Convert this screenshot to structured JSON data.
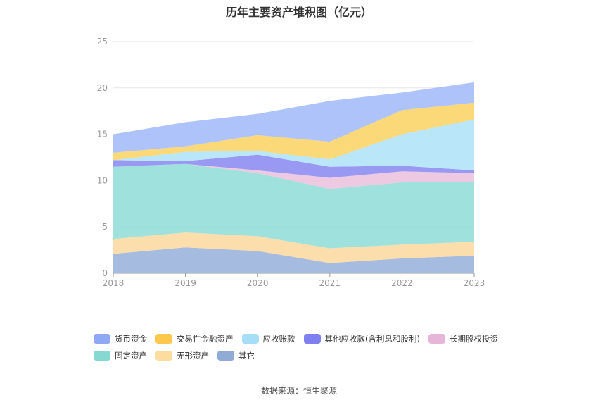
{
  "chart_data": {
    "type": "area",
    "stacked": true,
    "title": "历年主要资产堆积图（亿元）",
    "x": [
      "2018",
      "2019",
      "2020",
      "2021",
      "2022",
      "2023"
    ],
    "ylim": [
      0,
      25
    ],
    "yticks": [
      0,
      5,
      10,
      15,
      20,
      25
    ],
    "grid": true,
    "legend_position": "bottom",
    "series": [
      {
        "name": "其它",
        "color": "#9bb4dc",
        "values": [
          2.1,
          2.8,
          2.4,
          1.1,
          1.6,
          1.9
        ]
      },
      {
        "name": "无形资产",
        "color": "#fcd9a3",
        "values": [
          1.6,
          1.6,
          1.6,
          1.6,
          1.5,
          1.5
        ]
      },
      {
        "name": "固定资产",
        "color": "#94ded9",
        "values": [
          7.8,
          7.4,
          6.8,
          6.4,
          6.7,
          6.4
        ]
      },
      {
        "name": "长期股权投资",
        "color": "#ecc3df",
        "values": [
          0.0,
          0.0,
          0.3,
          1.2,
          1.2,
          1.0
        ]
      },
      {
        "name": "其他应收款(含利息和股利)",
        "color": "#8e8ef2",
        "values": [
          0.7,
          0.3,
          1.7,
          1.2,
          0.6,
          0.3
        ]
      },
      {
        "name": "应收账款",
        "color": "#b3e3f8",
        "values": [
          0.0,
          1.0,
          0.4,
          0.8,
          3.4,
          5.5
        ]
      },
      {
        "name": "交易性金融资产",
        "color": "#fbd469",
        "values": [
          0.8,
          0.6,
          1.7,
          1.9,
          2.6,
          1.8
        ]
      },
      {
        "name": "货币资金",
        "color": "#a6bcfb",
        "values": [
          2.0,
          2.6,
          2.3,
          4.4,
          1.9,
          2.2
        ]
      }
    ],
    "legend_order": [
      "货币资金",
      "交易性金融资产",
      "应收账款",
      "其他应收款(含利息和股利)",
      "长期股权投资",
      "固定资产",
      "无形资产",
      "其它"
    ]
  },
  "legend_colors": {
    "货币资金": "#8fa8f6",
    "交易性金融资产": "#fcc84c",
    "应收账款": "#a7def7",
    "其他应收款(含利息和股利)": "#7f7ff0",
    "长期股权投资": "#e6b6d9",
    "固定资产": "#86d8d3",
    "无形资产": "#fddca0",
    "其它": "#90abd6"
  },
  "source_text": "数据来源：恒生聚源"
}
